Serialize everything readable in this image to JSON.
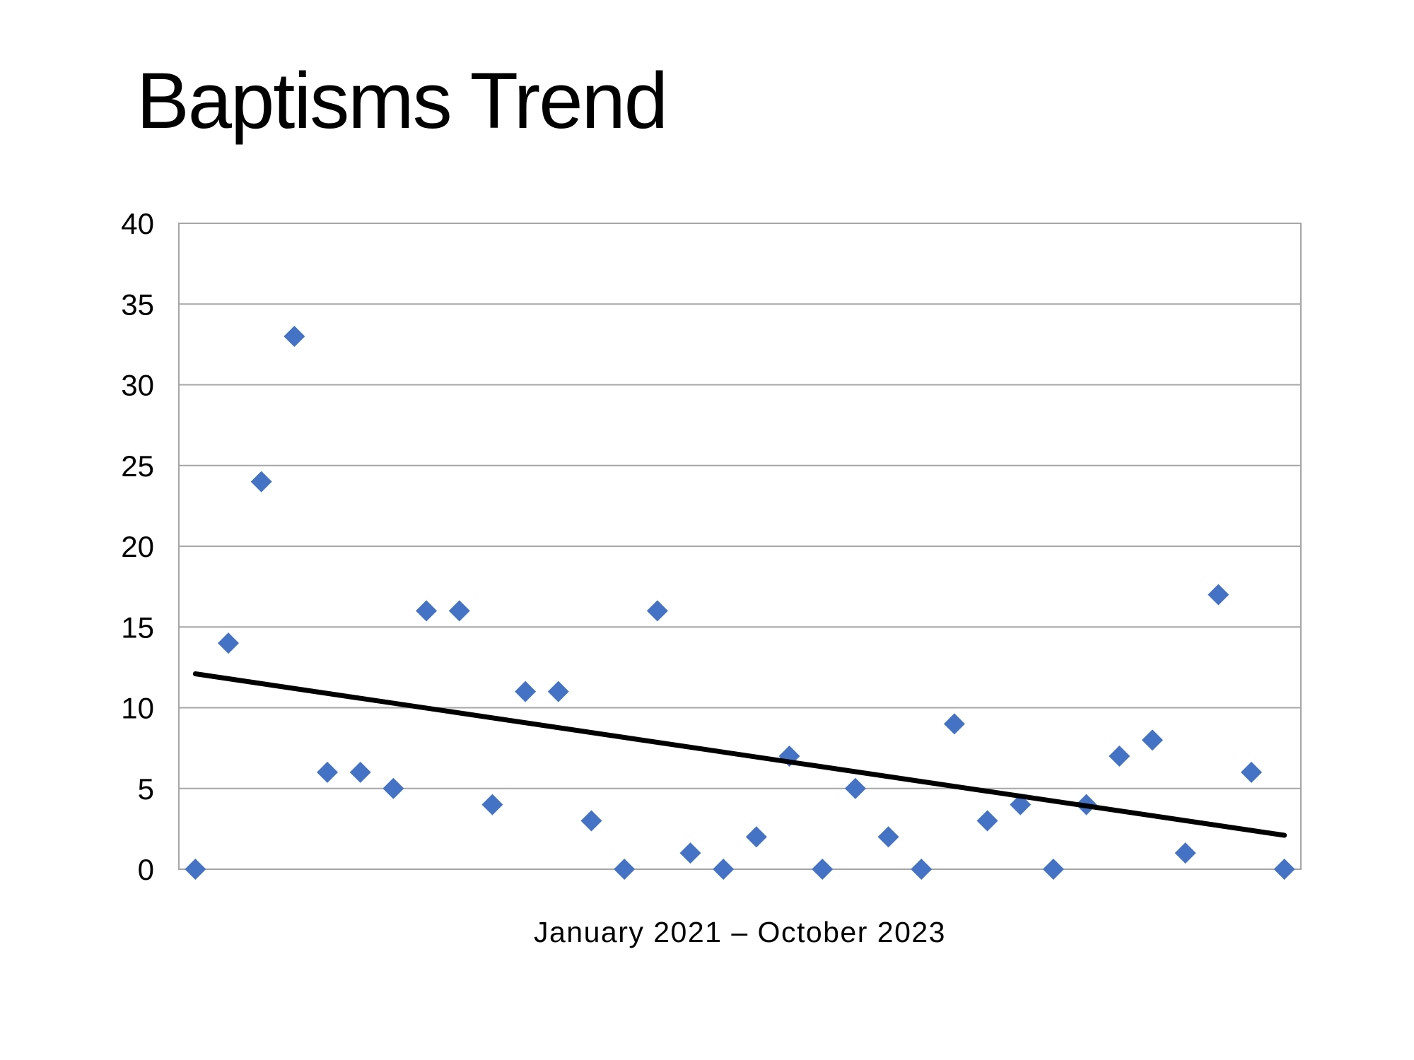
{
  "slide": {
    "background_color": "#ffffff"
  },
  "title": "Baptisms Trend",
  "chart_data": {
    "type": "scatter",
    "title": "Baptisms Trend",
    "xlabel": "January 2021 – October 2023",
    "ylabel": "",
    "x_description": "34 consecutive months from January 2021 through October 2023 (no visible x tick labels)",
    "x": [
      1,
      2,
      3,
      4,
      5,
      6,
      7,
      8,
      9,
      10,
      11,
      12,
      13,
      14,
      15,
      16,
      17,
      18,
      19,
      20,
      21,
      22,
      23,
      24,
      25,
      26,
      27,
      28,
      29,
      30,
      31,
      32,
      33,
      34
    ],
    "values": [
      0,
      14,
      24,
      33,
      6,
      6,
      5,
      16,
      16,
      4,
      11,
      11,
      3,
      0,
      16,
      1,
      0,
      2,
      7,
      0,
      5,
      2,
      0,
      9,
      3,
      4,
      0,
      4,
      7,
      8,
      1,
      17,
      6,
      0
    ],
    "series_name": "Baptisms",
    "ylim": [
      0,
      40
    ],
    "y_ticks": [
      0,
      5,
      10,
      15,
      20,
      25,
      30,
      35,
      40
    ],
    "grid": true,
    "legend_position": "none",
    "marker": {
      "shape": "diamond",
      "color": "#4472C4",
      "size": 30
    },
    "trendline": {
      "type": "linear",
      "color": "#000000",
      "width": 7,
      "start_value": 12.1,
      "end_value": 2.1
    },
    "gridline_color": "#a6a6a6",
    "border_color": "#a6a6a6"
  }
}
